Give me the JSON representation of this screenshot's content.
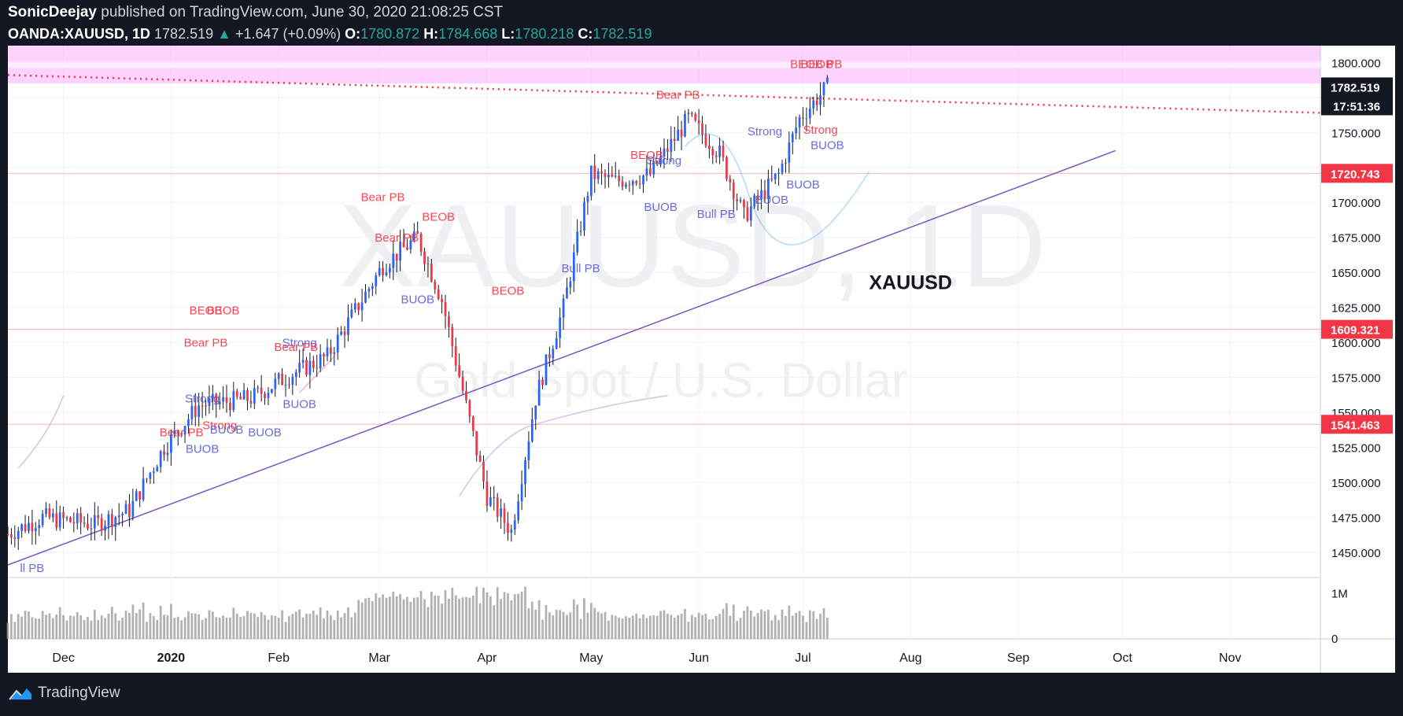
{
  "header": {
    "author": "SonicDeejay",
    "published_text": "published on TradingView.com, June 30, 2020 21:08:25 CST",
    "symbol": "OANDA:XAUUSD, 1D",
    "last": "1782.519",
    "change": "+1.647 (+0.09%)",
    "o_label": "O:",
    "o": "1780.872",
    "h_label": "H:",
    "h": "1784.668",
    "l_label": "L:",
    "l": "1780.218",
    "c_label": "C:",
    "c": "1782.519"
  },
  "footer": {
    "brand": "TradingView",
    "logo_icon": "tradingview-logo-icon"
  },
  "chart_data": {
    "type": "candlestick",
    "symbol_label": "XAUUSD",
    "watermark": {
      "symbol": "XAUUSD, 1D",
      "description": "Gold Spot / U.S. Dollar"
    },
    "y_ticks": [
      1450,
      1475,
      1500,
      1525,
      1550,
      1575,
      1600,
      1625,
      1650,
      1675,
      1700,
      1725,
      1750,
      1775,
      1800
    ],
    "y_tick_labels": [
      "1450.000",
      "1475.000",
      "1500.000",
      "1525.000",
      "1550.000",
      "1575.000",
      "1600.000",
      "1625.000",
      "1650.000",
      "1675.000",
      "1700.000",
      "1725.000",
      "1750.000",
      "1775.000",
      "1800.000"
    ],
    "ylim": [
      1432,
      1812
    ],
    "x_labels": [
      "Dec",
      "2020",
      "Feb",
      "Mar",
      "Apr",
      "May",
      "Jun",
      "Jul",
      "Aug",
      "Sep",
      "Oct",
      "Nov"
    ],
    "x_label_days": [
      16,
      47,
      78,
      107,
      138,
      168,
      199,
      229,
      260,
      291,
      321,
      352
    ],
    "xlim": [
      0,
      378
    ],
    "price_levels": [
      {
        "value": 1720.743,
        "label": "1720.743",
        "color": "#f23645"
      },
      {
        "value": 1609.321,
        "label": "1609.321",
        "color": "#f23645"
      },
      {
        "value": 1541.463,
        "label": "1541.463",
        "color": "#f23645"
      }
    ],
    "last_price": {
      "value": 1782.519,
      "label": "1782.519",
      "countdown": "17:51:36"
    },
    "zone": {
      "from": 1785,
      "to": 1812,
      "color": "#ff80ff"
    },
    "resistance_line": {
      "x1": 0,
      "y1": 1791,
      "x2": 378,
      "y2": 1764,
      "color": "#f23645"
    },
    "trend_line": {
      "x1": 0,
      "y1": 1441,
      "x2": 319,
      "y2": 1737,
      "color": "#7e57c2"
    },
    "anchor": {
      "start_close": 1463,
      "end_close": 1782.519,
      "bars": 236,
      "drop_bar": 150,
      "drop_low": 1468,
      "peak_bar": 178,
      "peak_value": 1762
    },
    "volume_ticks": [
      {
        "value": 0,
        "label": "0"
      },
      {
        "value": 1000000,
        "label": "1M"
      }
    ],
    "annotations": [
      {
        "text": "ll PB",
        "x": 7,
        "y": 1436,
        "color": "#5b5bd6"
      },
      {
        "text": "BUOB",
        "x": 56,
        "y": 1521,
        "color": "#5b5bd6"
      },
      {
        "text": "Bear PB",
        "x": 50,
        "y": 1533,
        "color": "#f23645"
      },
      {
        "text": "Strong",
        "x": 56,
        "y": 1557,
        "color": "#5b5bd6"
      },
      {
        "text": "Strong",
        "x": 61,
        "y": 1538,
        "color": "#f23645"
      },
      {
        "text": "BUOB",
        "x": 63,
        "y": 1535,
        "color": "#5b5bd6"
      },
      {
        "text": "Bear PB",
        "x": 57,
        "y": 1597,
        "color": "#f23645"
      },
      {
        "text": "BEOB",
        "x": 57,
        "y": 1620,
        "color": "#f23645"
      },
      {
        "text": "BEOB",
        "x": 62,
        "y": 1620,
        "color": "#f23645"
      },
      {
        "text": "BUOB",
        "x": 74,
        "y": 1533,
        "color": "#5b5bd6"
      },
      {
        "text": "Strong",
        "x": 84,
        "y": 1597,
        "color": "#5b5bd6"
      },
      {
        "text": "Bear PB",
        "x": 83,
        "y": 1594,
        "color": "#f23645"
      },
      {
        "text": "BUOB",
        "x": 84,
        "y": 1553,
        "color": "#5b5bd6"
      },
      {
        "text": "Bear PB",
        "x": 108,
        "y": 1701,
        "color": "#f23645"
      },
      {
        "text": "Bear PB",
        "x": 112,
        "y": 1672,
        "color": "#f23645"
      },
      {
        "text": "BEOB",
        "x": 124,
        "y": 1687,
        "color": "#f23645"
      },
      {
        "text": "BUOB",
        "x": 118,
        "y": 1628,
        "color": "#5b5bd6"
      },
      {
        "text": "BEOB",
        "x": 144,
        "y": 1634,
        "color": "#f23645"
      },
      {
        "text": "Bull PB",
        "x": 165,
        "y": 1650,
        "color": "#5b5bd6"
      },
      {
        "text": "Bear PB",
        "x": 193,
        "y": 1774,
        "color": "#f23645"
      },
      {
        "text": "BEOB",
        "x": 184,
        "y": 1731,
        "color": "#f23645"
      },
      {
        "text": "Strong",
        "x": 189,
        "y": 1727,
        "color": "#5b5bd6"
      },
      {
        "text": "BUOB",
        "x": 188,
        "y": 1694,
        "color": "#5b5bd6"
      },
      {
        "text": "Bull PB",
        "x": 204,
        "y": 1689,
        "color": "#5b5bd6"
      },
      {
        "text": "Strong",
        "x": 218,
        "y": 1748,
        "color": "#5b5bd6"
      },
      {
        "text": "Strong",
        "x": 234,
        "y": 1749,
        "color": "#f23645"
      },
      {
        "text": "BUOB",
        "x": 236,
        "y": 1738,
        "color": "#5b5bd6"
      },
      {
        "text": "BUOB",
        "x": 229,
        "y": 1710,
        "color": "#5b5bd6"
      },
      {
        "text": "BUOB",
        "x": 220,
        "y": 1699,
        "color": "#5b5bd6"
      },
      {
        "text": "BEOB",
        "x": 230,
        "y": 1796,
        "color": "#f23645"
      },
      {
        "text": "BEOB",
        "x": 233,
        "y": 1796,
        "color": "#f23645"
      },
      {
        "text": "PB",
        "x": 238,
        "y": 1796,
        "color": "#f23645"
      }
    ],
    "colors": {
      "up": "#2962ff",
      "down": "#f23645",
      "grid": "#f0f3fa",
      "volume": "#9e9e9e",
      "axis_text": "#131722",
      "label_bg": "#131722",
      "level_bg": "#f23645",
      "text_label": "#131722"
    }
  }
}
